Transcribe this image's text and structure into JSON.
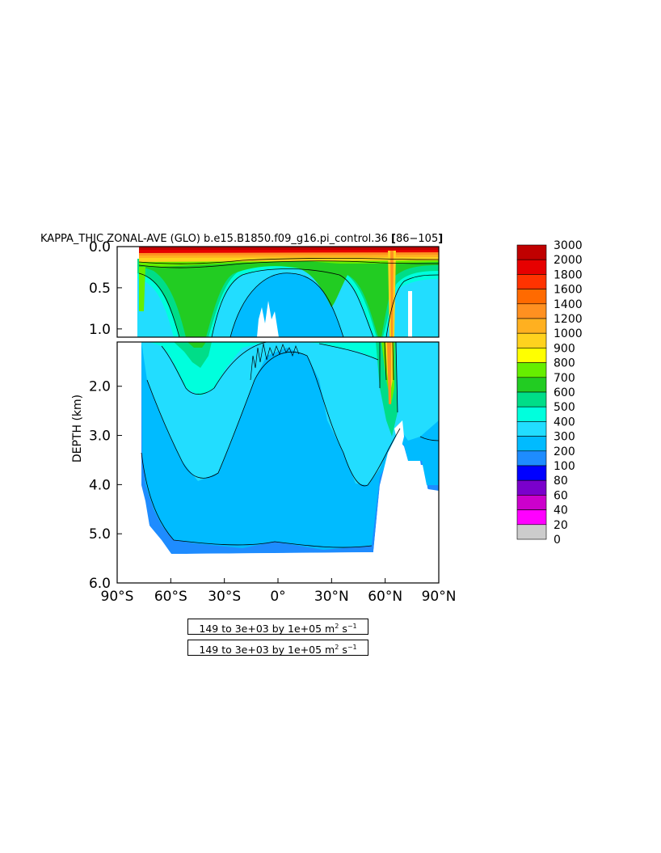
{
  "chart_data": {
    "type": "heatmap",
    "title": "KAPPA_THIC ZONAL-AVE (GLO) b.e15.B1850.f09_g16.pi_control.36 [86-105]",
    "title_prefix": "KAPPA_THIC ZONAL-AVE (GLO) b.e15.B1850.f09_g16.pi_control.36",
    "title_years": "86−105",
    "xlabel": "",
    "ylabel": "DEPTH (km)",
    "xlim": [
      -90,
      90
    ],
    "upper_panel_ylim": [
      0.0,
      1.1
    ],
    "lower_panel_ylim": [
      1.1,
      6.0
    ],
    "upper_y_ticks": [
      "0.0",
      "0.5",
      "1.0"
    ],
    "lower_y_ticks": [
      "2.0",
      "3.0",
      "4.0",
      "5.0",
      "6.0"
    ],
    "x_ticks": [
      "90°S",
      "60°S",
      "30°S",
      "0°",
      "30°N",
      "60°N",
      "90°N"
    ],
    "x_tick_values": [
      -90,
      -60,
      -30,
      0,
      30,
      60,
      90
    ],
    "colorbar_levels": [
      "3000",
      "2000",
      "1800",
      "1600",
      "1400",
      "1200",
      "1000",
      "900",
      "800",
      "700",
      "600",
      "500",
      "400",
      "300",
      "200",
      "100",
      "80",
      "60",
      "40",
      "20",
      "0"
    ],
    "colorbar_colors": [
      "#c00000",
      "#e60000",
      "#ff3300",
      "#ff6a00",
      "#ff9020",
      "#ffb020",
      "#ffd21e",
      "#ffff00",
      "#66ee00",
      "#22cc22",
      "#00dd88",
      "#00ffdd",
      "#22ddff",
      "#00bbff",
      "#1e8cff",
      "#0000ff",
      "#7a00cc",
      "#cc00cc",
      "#ff00ff",
      "#cccccc",
      "#707070"
    ],
    "contour_info": "149 to 3e+03 by 1e+05",
    "units_base": "m",
    "units_exp1": "2",
    "units_mid": "s",
    "units_exp2": "−1"
  }
}
